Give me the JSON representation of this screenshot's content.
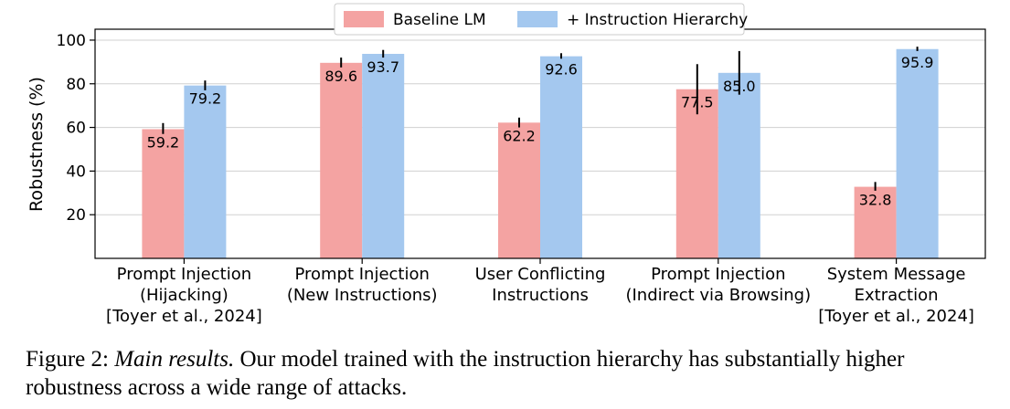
{
  "chart_data": {
    "type": "bar",
    "categories": [
      [
        "Prompt Injection",
        "(Hijacking)",
        "[Toyer et al., 2024]"
      ],
      [
        "Prompt Injection",
        "(New Instructions)"
      ],
      [
        "User Conflicting",
        "Instructions"
      ],
      [
        "Prompt Injection",
        "(Indirect via Browsing)"
      ],
      [
        "System Message",
        "Extraction",
        "[Toyer et al., 2024]"
      ]
    ],
    "series": [
      {
        "name": "Baseline LM",
        "color": "#f4a3a2",
        "values": [
          59.2,
          89.6,
          62.2,
          77.5,
          32.8
        ],
        "labels": [
          "59.2",
          "89.6",
          "62.2",
          "77.5",
          "32.8"
        ],
        "error_low": [
          57.0,
          87.5,
          60.0,
          66.0,
          31.0
        ],
        "error_high": [
          62.0,
          92.0,
          64.5,
          89.0,
          35.0
        ]
      },
      {
        "name": "+ Instruction Hierarchy",
        "color": "#a4c8ef",
        "values": [
          79.2,
          93.7,
          92.6,
          85.0,
          95.9
        ],
        "labels": [
          "79.2",
          "93.7",
          "92.6",
          "85.0",
          "95.9"
        ],
        "error_low": [
          77.0,
          92.0,
          91.5,
          75.0,
          95.0
        ],
        "error_high": [
          81.5,
          95.5,
          94.0,
          95.0,
          97.0
        ]
      }
    ],
    "ylabel": "Robustness (%)",
    "yticks": [
      "20",
      "40",
      "60",
      "80",
      "100"
    ],
    "ylim": [
      0,
      105
    ],
    "grid": "horizontal",
    "legend_position": "top-center"
  },
  "caption": {
    "prefix": "Figure 2: ",
    "emph": "Main results.",
    "text": " Our model trained with the instruction hierarchy has substantially higher robustness across a wide range of attacks."
  }
}
